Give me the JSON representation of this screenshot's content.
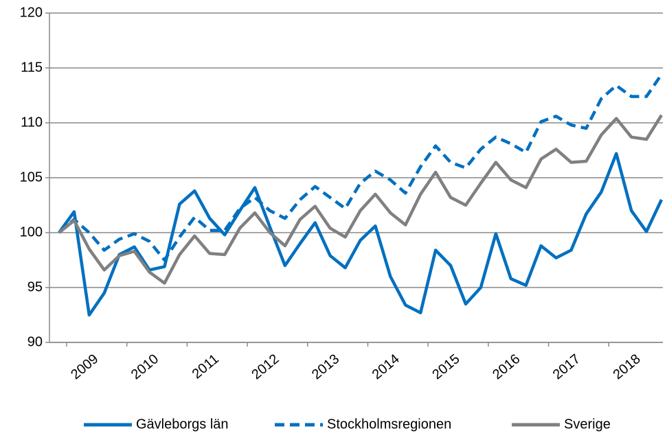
{
  "chart_data": {
    "type": "line",
    "categories": [
      null,
      "2009",
      null,
      null,
      null,
      "2010",
      null,
      null,
      null,
      "2011",
      null,
      null,
      null,
      "2012",
      null,
      null,
      null,
      "2013",
      null,
      null,
      null,
      "2014",
      null,
      null,
      null,
      "2015",
      null,
      null,
      null,
      "2016",
      null,
      null,
      null,
      "2017",
      null,
      null,
      null,
      "2018",
      null,
      null,
      null
    ],
    "series": [
      {
        "name": "Gävleborgs län",
        "color": "#0070c0",
        "dash": false,
        "values": [
          100,
          101.9,
          92.5,
          94.5,
          98.0,
          98.7,
          96.6,
          96.9,
          102.6,
          103.8,
          101.3,
          99.8,
          102.0,
          104.1,
          100.5,
          97.0,
          99.0,
          100.9,
          97.9,
          96.8,
          99.3,
          100.6,
          96.0,
          93.4,
          92.7,
          98.4,
          97.0,
          93.5,
          95.0,
          99.9,
          95.8,
          95.2,
          98.8,
          97.7,
          98.4,
          101.7,
          103.7,
          107.2,
          102.0,
          100.1,
          103.0
        ]
      },
      {
        "name": "Stockholmsregionen",
        "color": "#0070c0",
        "dash": true,
        "values": [
          100,
          101.2,
          100.0,
          98.4,
          99.4,
          99.9,
          99.2,
          97.5,
          99.6,
          101.4,
          100.2,
          100.2,
          102.2,
          103.2,
          102.0,
          101.3,
          103.0,
          104.2,
          103.2,
          102.2,
          104.5,
          105.6,
          104.8,
          103.6,
          106.0,
          107.9,
          106.4,
          105.9,
          107.6,
          108.7,
          108.1,
          107.3,
          110.1,
          110.6,
          109.8,
          109.5,
          112.2,
          113.4,
          112.4,
          112.4,
          114.4
        ]
      },
      {
        "name": "Sverige",
        "color": "#808080",
        "dash": false,
        "values": [
          100,
          101.1,
          98.5,
          96.6,
          97.9,
          98.3,
          96.4,
          95.4,
          98.0,
          99.7,
          98.1,
          98.0,
          100.4,
          101.8,
          100.0,
          98.8,
          101.2,
          102.4,
          100.4,
          99.6,
          102.0,
          103.5,
          101.8,
          100.7,
          103.5,
          105.5,
          103.2,
          102.5,
          104.5,
          106.4,
          104.8,
          104.1,
          106.7,
          107.6,
          106.4,
          106.5,
          108.9,
          110.4,
          108.7,
          108.5,
          110.7
        ]
      }
    ],
    "ylim": [
      90,
      120
    ],
    "yticks": [
      90,
      95,
      100,
      105,
      110,
      115,
      120
    ],
    "grid": true,
    "legend": "bottom"
  }
}
